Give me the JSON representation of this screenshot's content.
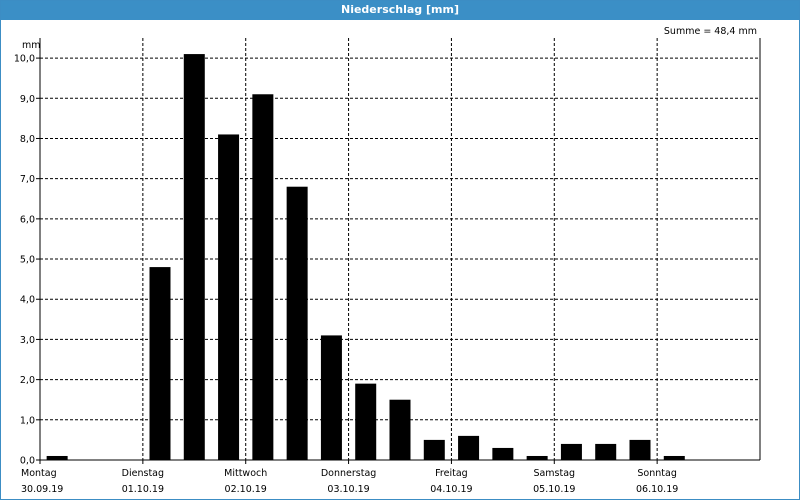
{
  "window": {
    "title": "Niederschlag [mm]"
  },
  "summary": {
    "total_label": "Summe = 48,4 mm"
  },
  "colors": {
    "titlebar": "#3b8fc6",
    "bars": "#000000",
    "grid": "#000000"
  },
  "chart_data": {
    "type": "bar",
    "title": "Niederschlag [mm]",
    "ylabel": "mm",
    "xlabel": "",
    "ylim": [
      0,
      10.5
    ],
    "yticks": [
      "0,0",
      "1,0",
      "2,0",
      "3,0",
      "4,0",
      "5,0",
      "6,0",
      "7,0",
      "8,0",
      "9,0",
      "10,0"
    ],
    "grid": true,
    "days": [
      {
        "weekday": "Montag",
        "date": "30.09.19"
      },
      {
        "weekday": "Dienstag",
        "date": "01.10.19"
      },
      {
        "weekday": "Mittwoch",
        "date": "02.10.19"
      },
      {
        "weekday": "Donnerstag",
        "date": "03.10.19"
      },
      {
        "weekday": "Freitag",
        "date": "04.10.19"
      },
      {
        "weekday": "Samstag",
        "date": "05.10.19"
      },
      {
        "weekday": "Sonntag",
        "date": "06.10.19"
      }
    ],
    "bars_per_day": 3,
    "values": [
      0.1,
      0,
      0,
      4.8,
      10.1,
      8.1,
      9.1,
      6.8,
      3.1,
      1.9,
      1.5,
      0.5,
      0.6,
      0.3,
      0.1,
      0.4,
      0.4,
      0.5,
      0.1,
      0,
      0
    ]
  }
}
